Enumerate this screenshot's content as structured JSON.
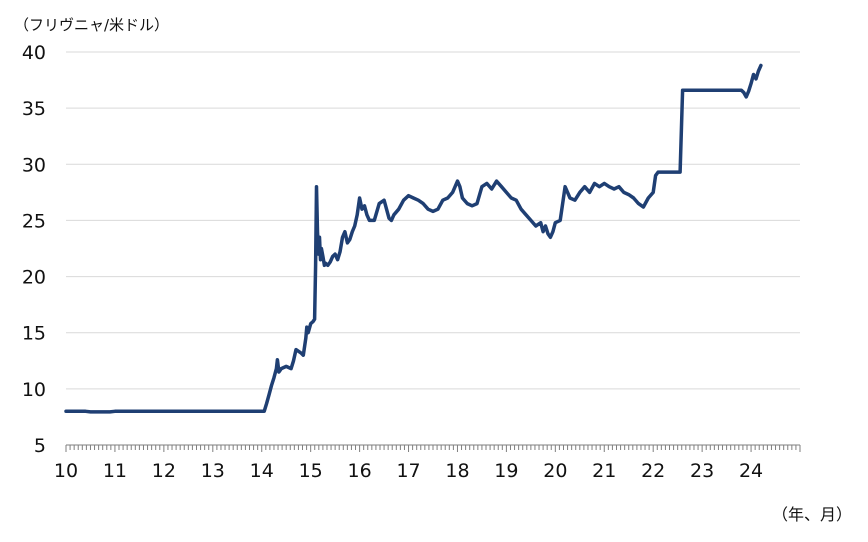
{
  "chart_data": {
    "type": "line",
    "title": "",
    "ylabel": "（フリヴニャ/米ドル）",
    "xlabel": "（年、月）",
    "ylim": [
      5,
      40
    ],
    "xlim": [
      2010.0,
      2025.0
    ],
    "y_ticks": [
      "40",
      "35",
      "30",
      "25",
      "20",
      "15",
      "10",
      "5"
    ],
    "x_ticks": [
      "10",
      "11",
      "12",
      "13",
      "14",
      "15",
      "16",
      "17",
      "18",
      "19",
      "20",
      "21",
      "22",
      "23",
      "24"
    ],
    "grid": "horizontal",
    "legend": "none",
    "line_color": "#1f3f73",
    "series": [
      {
        "x": [
          2010.0,
          2010.4,
          2010.5,
          2010.9,
          2011.0,
          2012.0,
          2013.0,
          2013.9,
          2014.05,
          2014.1,
          2014.15,
          2014.2,
          2014.25,
          2014.3,
          2014.32,
          2014.35,
          2014.4,
          2014.5,
          2014.6,
          2014.65,
          2014.7,
          2014.8,
          2014.85,
          2014.9,
          2014.92,
          2014.95,
          2015.0,
          2015.05,
          2015.08,
          2015.1,
          2015.12,
          2015.14,
          2015.16,
          2015.18,
          2015.2,
          2015.22,
          2015.25,
          2015.28,
          2015.3,
          2015.35,
          2015.4,
          2015.45,
          2015.5,
          2015.55,
          2015.6,
          2015.65,
          2015.7,
          2015.75,
          2015.8,
          2015.85,
          2015.9,
          2015.95,
          2016.0,
          2016.05,
          2016.1,
          2016.15,
          2016.2,
          2016.3,
          2016.4,
          2016.5,
          2016.6,
          2016.65,
          2016.7,
          2016.8,
          2016.9,
          2017.0,
          2017.1,
          2017.2,
          2017.3,
          2017.4,
          2017.5,
          2017.6,
          2017.7,
          2017.8,
          2017.9,
          2018.0,
          2018.05,
          2018.1,
          2018.2,
          2018.3,
          2018.4,
          2018.5,
          2018.6,
          2018.7,
          2018.8,
          2018.9,
          2019.0,
          2019.1,
          2019.2,
          2019.3,
          2019.4,
          2019.5,
          2019.6,
          2019.7,
          2019.75,
          2019.8,
          2019.85,
          2019.9,
          2019.95,
          2020.0,
          2020.1,
          2020.2,
          2020.25,
          2020.3,
          2020.4,
          2020.5,
          2020.6,
          2020.7,
          2020.8,
          2020.9,
          2021.0,
          2021.1,
          2021.2,
          2021.3,
          2021.4,
          2021.5,
          2021.6,
          2021.7,
          2021.8,
          2021.9,
          2022.0,
          2022.05,
          2022.1,
          2022.15,
          2022.2,
          2022.3,
          2022.4,
          2022.5,
          2022.55,
          2022.6,
          2022.8,
          2023.0,
          2023.3,
          2023.6,
          2023.8,
          2023.85,
          2023.9,
          2023.95,
          2024.0,
          2024.05,
          2024.1,
          2024.15,
          2024.2
        ],
        "y": [
          8.0,
          8.0,
          7.95,
          7.95,
          8.0,
          8.0,
          8.0,
          8.0,
          8.0,
          8.7,
          9.5,
          10.3,
          11.0,
          11.8,
          12.6,
          11.5,
          11.8,
          12.0,
          11.8,
          12.5,
          13.5,
          13.2,
          13.0,
          14.5,
          15.5,
          15.0,
          15.8,
          16.0,
          16.2,
          21.0,
          28.0,
          24.0,
          22.0,
          23.5,
          21.5,
          22.5,
          21.8,
          21.0,
          21.2,
          21.0,
          21.3,
          21.8,
          22.0,
          21.5,
          22.2,
          23.5,
          24.0,
          23.0,
          23.3,
          24.0,
          24.5,
          25.5,
          27.0,
          26.0,
          26.3,
          25.5,
          25.0,
          25.0,
          26.5,
          26.8,
          25.2,
          25.0,
          25.5,
          26.0,
          26.8,
          27.2,
          27.0,
          26.8,
          26.5,
          26.0,
          25.8,
          26.0,
          26.8,
          27.0,
          27.5,
          28.5,
          28.0,
          27.0,
          26.5,
          26.3,
          26.5,
          28.0,
          28.3,
          27.8,
          28.5,
          28.0,
          27.5,
          27.0,
          26.8,
          26.0,
          25.5,
          25.0,
          24.5,
          24.8,
          24.0,
          24.5,
          23.8,
          23.5,
          24.0,
          24.8,
          25.0,
          28.0,
          27.5,
          27.0,
          26.8,
          27.5,
          28.0,
          27.5,
          28.3,
          28.0,
          28.3,
          28.0,
          27.8,
          28.0,
          27.5,
          27.3,
          27.0,
          26.5,
          26.2,
          27.0,
          27.5,
          29.0,
          29.3,
          29.3,
          29.3,
          29.3,
          29.3,
          29.3,
          29.3,
          36.6,
          36.6,
          36.6,
          36.6,
          36.6,
          36.6,
          36.4,
          36.0,
          36.5,
          37.2,
          38.0,
          37.6,
          38.3,
          38.8
        ]
      }
    ]
  }
}
